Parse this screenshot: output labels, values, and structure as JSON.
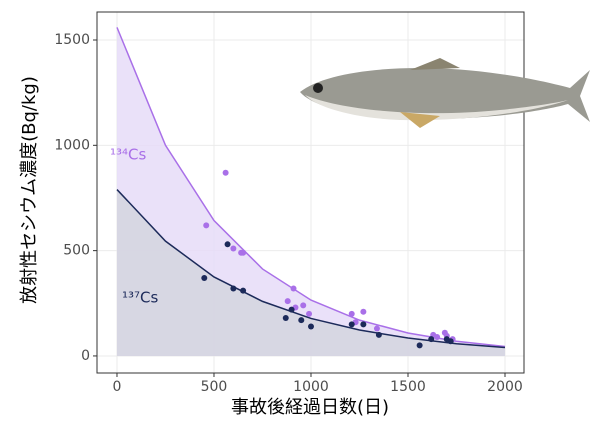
{
  "chart_data": {
    "type": "scatter",
    "x_label": "事故後経過日数(日)",
    "y_label": "放射性セシウム濃度(Bq/kg)",
    "xlim": [
      -103,
      2098
    ],
    "ylim": [
      -81,
      1633
    ],
    "xticks": [
      0,
      500,
      1000,
      1500,
      2000
    ],
    "yticks": [
      0,
      500,
      1000,
      1500
    ],
    "grid": true,
    "series": [
      {
        "name": "¹³⁴Cs",
        "color": "#a970e8",
        "fill_color": "#e6dcf8",
        "x": [
          460,
          560,
          600,
          640,
          650,
          880,
          910,
          920,
          960,
          990,
          1210,
          1230,
          1270,
          1340,
          1630,
          1650,
          1690,
          1700,
          1730
        ],
        "values": [
          620,
          870,
          510,
          490,
          490,
          260,
          320,
          230,
          240,
          200,
          200,
          160,
          210,
          130,
          100,
          90,
          110,
          95,
          80
        ],
        "fit": {
          "x": [
            0,
            250,
            500,
            750,
            1000,
            1250,
            1500,
            1750,
            2000
          ],
          "values": [
            1560,
            1000,
            643,
            413,
            265,
            170,
            109,
            70,
            45
          ]
        }
      },
      {
        "name": "¹³⁷Cs",
        "color": "#1c2a5a",
        "fill_color": "#d3d5df",
        "x": [
          450,
          570,
          600,
          650,
          870,
          900,
          950,
          1000,
          1210,
          1270,
          1350,
          1560,
          1620,
          1700,
          1720
        ],
        "values": [
          370,
          530,
          320,
          310,
          180,
          220,
          170,
          140,
          150,
          150,
          100,
          50,
          80,
          80,
          70
        ],
        "fit": {
          "x": [
            0,
            250,
            500,
            750,
            1000,
            1250,
            1500,
            1750,
            2000
          ],
          "values": [
            790,
            545,
            375,
            259,
            178,
            123,
            85,
            58,
            40
          ]
        }
      }
    ]
  }
}
